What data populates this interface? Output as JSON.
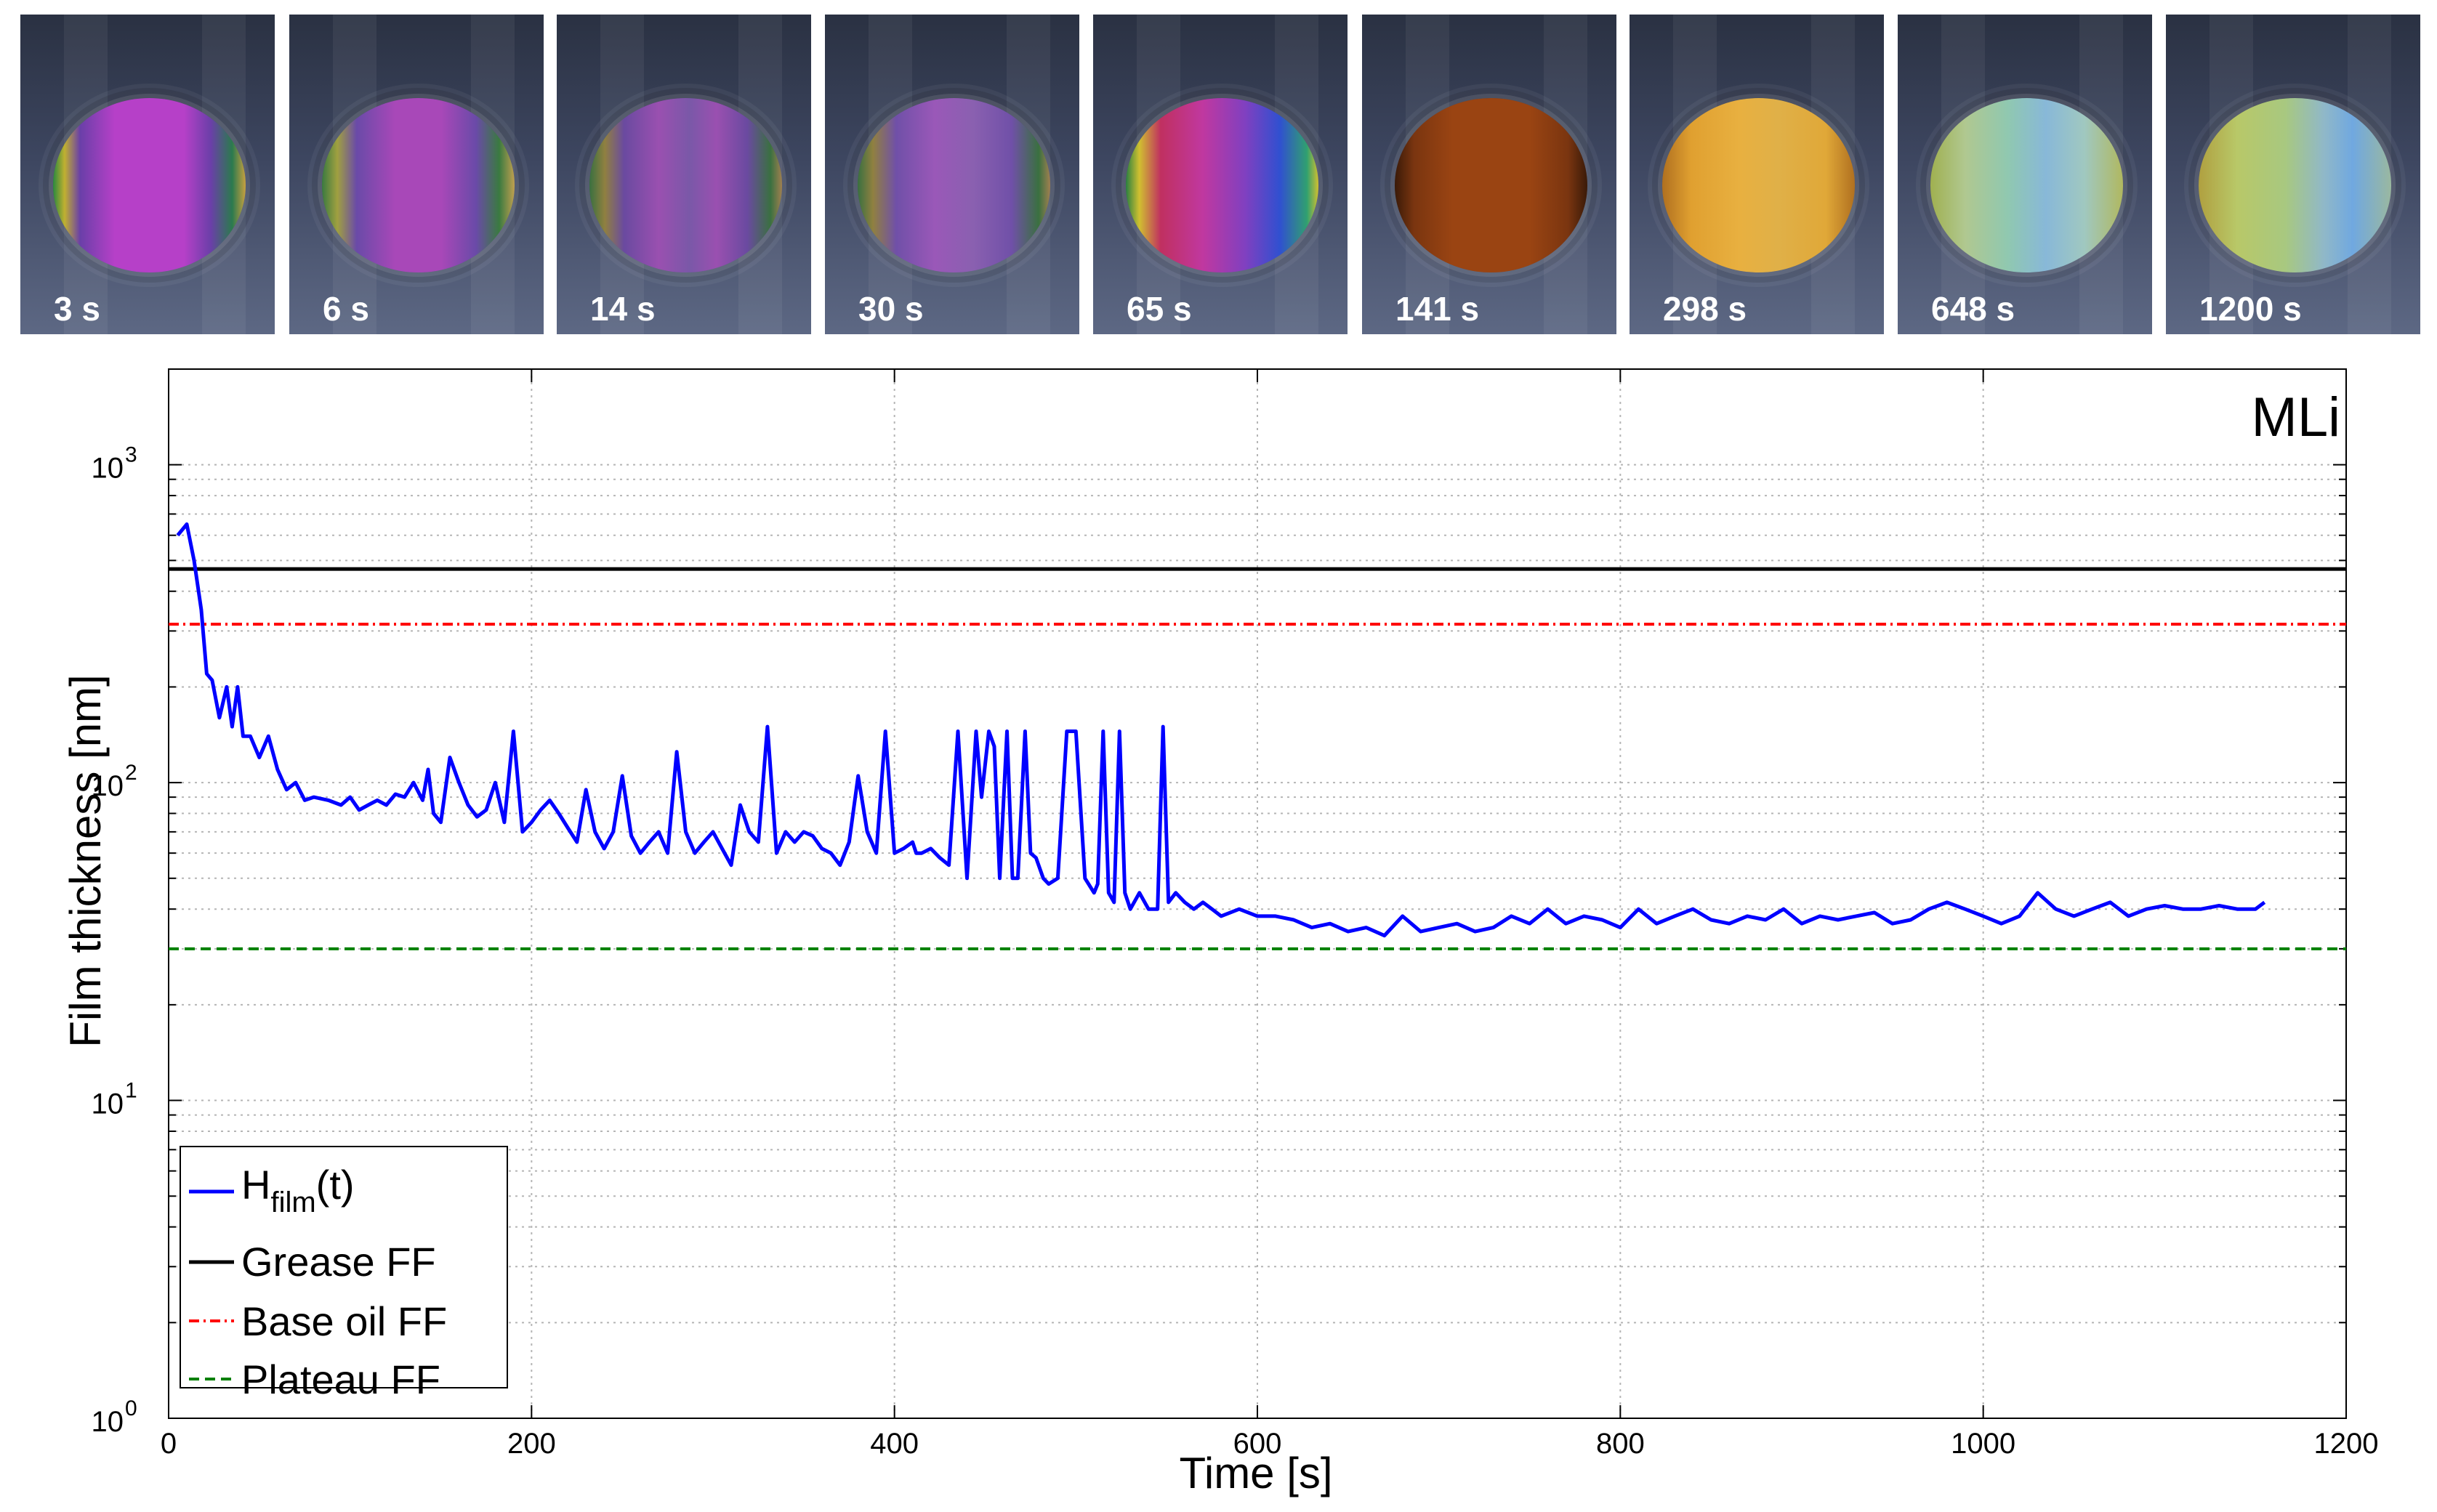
{
  "frames": [
    {
      "label": "3 s",
      "gradient": "linear-gradient(90deg,#2b8a3e 0%,#c0b030 6%,#6a3fa8 14%,#b640c8 32%,#b640c8 68%,#6a3fa8 82%,#2b7a4e 93%,#c8a040 100%)"
    },
    {
      "label": "6 s",
      "gradient": "linear-gradient(90deg,#3a7a40 0%,#a0a040 8%,#6a4aa8 18%,#a848b8 38%,#a848b8 62%,#6a4aa8 80%,#3a7a40 92%,#c0a050 100%)"
    },
    {
      "label": "14 s",
      "gradient": "linear-gradient(90deg,#3a7040 0%,#908040 8%,#6a4aa0 18%,#9a50b0 36%,#7a58a8 52%,#9a50b0 66%,#6a4aa0 82%,#3a7040 94%,#a08050 100%)"
    },
    {
      "label": "30 s",
      "gradient": "linear-gradient(90deg,#3a7040 0%,#908040 8%,#7050a8 20%,#9a58b8 40%,#8a60b0 60%,#7050a8 80%,#3a7040 94%,#a08050 100%)"
    },
    {
      "label": "65 s",
      "gradient": "linear-gradient(90deg,#2a8040 0%,#d0c030 7%,#c03060 18%,#c038a0 40%,#8040c0 62%,#3050d0 80%,#30a070 94%,#d0c030 100%)"
    },
    {
      "label": "141 s",
      "gradient": "linear-gradient(90deg,#3a1a08 0%,#7a3510 10%,#9a4412 30%,#9a4412 70%,#7a3510 90%,#3a1a08 100%)"
    },
    {
      "label": "298 s",
      "gradient": "linear-gradient(90deg,#b07020 0%,#e0a030 15%,#e8b040 40%,#e0b048 60%,#e0a838 85%,#b07020 100%)"
    },
    {
      "label": "648 s",
      "gradient": "linear-gradient(90deg,#a0b050 0%,#b0c890 18%,#90c8b0 40%,#88b8d8 60%,#a0c8c0 80%,#b0b860 100%)"
    },
    {
      "label": "1200 s",
      "gradient": "linear-gradient(90deg,#b0a040 0%,#b8c868 20%,#a8c880 45%,#90b8c8 65%,#70a8e0 80%,#9ab8a0 100%)"
    }
  ],
  "chart_data": {
    "type": "line",
    "annotation": "MLi",
    "xlabel": "Time [s]",
    "ylabel": "Film thickness [nm]",
    "xlim": [
      0,
      1200
    ],
    "ylim": [
      1,
      2000
    ],
    "yscale": "log",
    "grid": true,
    "xticks": [
      {
        "value": 0,
        "label": "0"
      },
      {
        "value": 200,
        "label": "200"
      },
      {
        "value": 400,
        "label": "400"
      },
      {
        "value": 600,
        "label": "600"
      },
      {
        "value": 800,
        "label": "800"
      },
      {
        "value": 1000,
        "label": "1000"
      },
      {
        "value": 1200,
        "label": "1200"
      }
    ],
    "yticks": [
      {
        "value": 1,
        "base": "10",
        "exp": "0"
      },
      {
        "value": 10,
        "base": "10",
        "exp": "1"
      },
      {
        "value": 100,
        "base": "10",
        "exp": "2"
      },
      {
        "value": 1000,
        "base": "10",
        "exp": "3"
      }
    ],
    "legend_position": "bottom-left",
    "legend": {
      "h_main": "H",
      "h_sub": "film",
      "h_tail": "(t)",
      "grease": "Grease FF",
      "base_oil": "Base oil FF",
      "plateau": "Plateau FF"
    },
    "colors": {
      "h_film": "#0000ff",
      "grease": "#000000",
      "base_oil": "#ff0000",
      "plateau": "#008000"
    },
    "reference_lines": {
      "grease": 470,
      "base_oil": 315,
      "plateau": 30
    },
    "series": [
      {
        "x": [
          5,
          10,
          14,
          18,
          21,
          24,
          28,
          32,
          35,
          38,
          41,
          45,
          50,
          55,
          60,
          65,
          70,
          75,
          80,
          88,
          95,
          100,
          105,
          110,
          115,
          120,
          125,
          130,
          135,
          140,
          143,
          146,
          150,
          155,
          160,
          165,
          170,
          175,
          180,
          185,
          190,
          195,
          200,
          205,
          210,
          215,
          220,
          225,
          230,
          235,
          240,
          245,
          250,
          255,
          260,
          265,
          270,
          275,
          280,
          285,
          290,
          295,
          300,
          305,
          310,
          315,
          320,
          325,
          330,
          335,
          340,
          345,
          350,
          355,
          360,
          365,
          370,
          375,
          380,
          385,
          390,
          395,
          400,
          405,
          410,
          412,
          415,
          420,
          425,
          430,
          435,
          440,
          445,
          448,
          452,
          455,
          458,
          462,
          465,
          468,
          472,
          475,
          478,
          482,
          485,
          490,
          495,
          500,
          505,
          510,
          512,
          515,
          518,
          521,
          524,
          527,
          530,
          535,
          540,
          545,
          548,
          551,
          555,
          560,
          565,
          570,
          575,
          580,
          590,
          600,
          610,
          620,
          630,
          640,
          650,
          660,
          670,
          680,
          690,
          700,
          710,
          720,
          730,
          740,
          750,
          760,
          770,
          780,
          790,
          800,
          810,
          820,
          830,
          840,
          850,
          860,
          870,
          880,
          890,
          900,
          910,
          920,
          930,
          940,
          950,
          960,
          970,
          980,
          990,
          1000,
          1010,
          1020,
          1030,
          1040,
          1050,
          1060,
          1070,
          1080,
          1090,
          1100,
          1110,
          1120,
          1130,
          1140,
          1150,
          1155
        ],
        "y": [
          600,
          650,
          500,
          350,
          220,
          210,
          160,
          200,
          150,
          200,
          140,
          140,
          120,
          140,
          110,
          95,
          100,
          88,
          90,
          88,
          85,
          90,
          82,
          85,
          88,
          85,
          92,
          90,
          100,
          88,
          110,
          80,
          75,
          120,
          100,
          85,
          78,
          82,
          100,
          75,
          145,
          70,
          75,
          82,
          88,
          80,
          72,
          65,
          95,
          70,
          62,
          70,
          105,
          68,
          60,
          65,
          70,
          60,
          125,
          70,
          60,
          65,
          70,
          62,
          55,
          85,
          70,
          65,
          150,
          60,
          70,
          65,
          70,
          68,
          62,
          60,
          55,
          65,
          105,
          70,
          60,
          145,
          60,
          62,
          65,
          60,
          60,
          62,
          58,
          55,
          145,
          50,
          145,
          90,
          145,
          130,
          50,
          145,
          50,
          50,
          145,
          60,
          58,
          50,
          48,
          50,
          145,
          145,
          50,
          45,
          48,
          145,
          45,
          42,
          145,
          45,
          40,
          45,
          40,
          40,
          150,
          42,
          45,
          42,
          40,
          42,
          40,
          38,
          40,
          38,
          38,
          37,
          35,
          36,
          34,
          35,
          33,
          38,
          34,
          35,
          36,
          34,
          35,
          38,
          36,
          40,
          36,
          38,
          37,
          35,
          40,
          36,
          38,
          40,
          37,
          36,
          38,
          37,
          40,
          36,
          38,
          37,
          38,
          39,
          36,
          37,
          40,
          42,
          40,
          38,
          36,
          38,
          45,
          40,
          38,
          40,
          42,
          38,
          40,
          41,
          40,
          40,
          41,
          40,
          40,
          42
        ]
      }
    ]
  }
}
